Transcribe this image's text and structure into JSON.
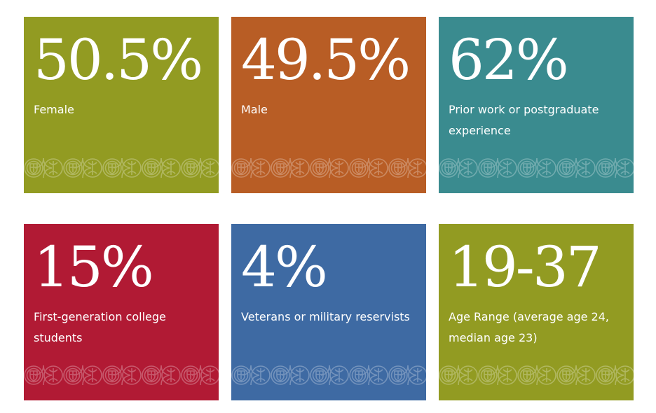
{
  "tiles": [
    {
      "stat": "50.5%",
      "label": "Female",
      "color": "#929b22"
    },
    {
      "stat": "49.5%",
      "label": "Male",
      "color": "#b85d25"
    },
    {
      "stat": "62%",
      "label": "Prior work or postgraduate experience",
      "color": "#3a8b8f"
    },
    {
      "stat": "15%",
      "label": "First-generation college students",
      "color": "#b11a34"
    },
    {
      "stat": "4%",
      "label": "Veterans or military reservists",
      "color": "#3e6aa3"
    },
    {
      "stat": "19-37",
      "label": "Age Range (average age 24, median age 23)",
      "color": "#929b22"
    }
  ],
  "pattern_icon": "shield-crest-icon"
}
